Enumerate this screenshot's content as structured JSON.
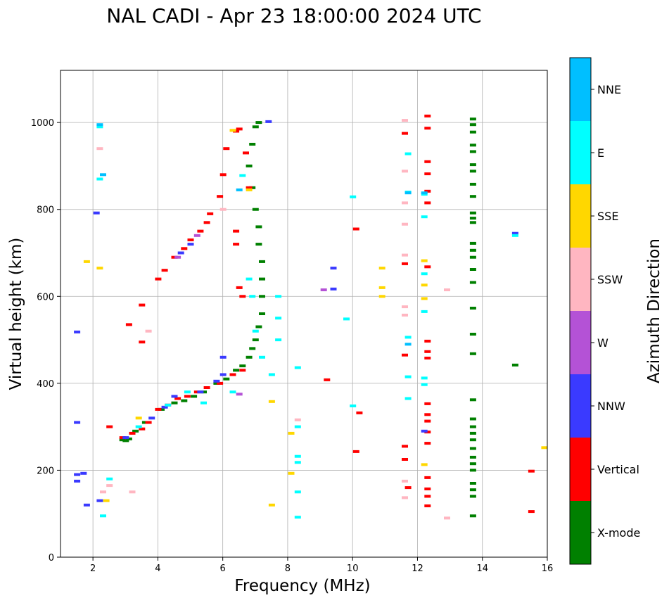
{
  "chart_data": {
    "type": "scatter",
    "title": "NAL CADI - Apr 23 18:00:00 2024 UTC",
    "xlabel": "Frequency (MHz)",
    "ylabel": "Virtual height (km)",
    "xlim": [
      1.0,
      16.0
    ],
    "ylim": [
      0,
      1120
    ],
    "xticks": [
      2,
      4,
      6,
      8,
      10,
      12,
      14,
      16
    ],
    "yticks": [
      0,
      200,
      400,
      600,
      800,
      1000
    ],
    "grid": true,
    "colorbar": {
      "label": "Azimuth Direction",
      "categories": [
        "X-mode",
        "Vertical",
        "NNW",
        "W",
        "SSW",
        "SSE",
        "E",
        "NNE"
      ],
      "colors": [
        "#008000",
        "#ff0000",
        "#3a3aff",
        "#b452d6",
        "#ffb6c1",
        "#ffd700",
        "#00ffff",
        "#00bfff"
      ]
    },
    "series": [
      {
        "name": "X-mode",
        "points": [
          [
            2.9,
            270
          ],
          [
            3.0,
            268
          ],
          [
            3.1,
            272
          ],
          [
            3.3,
            290
          ],
          [
            3.6,
            310
          ],
          [
            4.1,
            340
          ],
          [
            4.5,
            355
          ],
          [
            4.8,
            360
          ],
          [
            5.1,
            370
          ],
          [
            5.4,
            380
          ],
          [
            5.8,
            400
          ],
          [
            6.1,
            410
          ],
          [
            6.4,
            430
          ],
          [
            6.6,
            440
          ],
          [
            6.8,
            460
          ],
          [
            6.9,
            480
          ],
          [
            7.0,
            500
          ],
          [
            7.1,
            530
          ],
          [
            7.2,
            560
          ],
          [
            7.2,
            600
          ],
          [
            7.2,
            640
          ],
          [
            7.2,
            680
          ],
          [
            7.1,
            720
          ],
          [
            7.1,
            760
          ],
          [
            7.0,
            800
          ],
          [
            6.9,
            850
          ],
          [
            6.8,
            900
          ],
          [
            6.9,
            950
          ],
          [
            7.0,
            990
          ],
          [
            7.1,
            1000
          ],
          [
            13.7,
            95
          ],
          [
            13.7,
            140
          ],
          [
            13.7,
            155
          ],
          [
            13.7,
            170
          ],
          [
            13.7,
            200
          ],
          [
            13.7,
            215
          ],
          [
            13.7,
            230
          ],
          [
            13.7,
            250
          ],
          [
            13.7,
            270
          ],
          [
            13.7,
            285
          ],
          [
            13.7,
            300
          ],
          [
            13.7,
            318
          ],
          [
            13.7,
            362
          ],
          [
            13.7,
            468
          ],
          [
            13.7,
            513
          ],
          [
            13.7,
            573
          ],
          [
            13.7,
            632
          ],
          [
            13.7,
            662
          ],
          [
            13.7,
            690
          ],
          [
            13.7,
            706
          ],
          [
            13.7,
            722
          ],
          [
            13.7,
            770
          ],
          [
            13.7,
            780
          ],
          [
            13.7,
            792
          ],
          [
            13.7,
            830
          ],
          [
            13.7,
            858
          ],
          [
            13.7,
            888
          ],
          [
            13.7,
            903
          ],
          [
            13.7,
            933
          ],
          [
            13.7,
            948
          ],
          [
            13.7,
            978
          ],
          [
            13.7,
            995
          ],
          [
            13.7,
            1008
          ],
          [
            15.0,
            442
          ]
        ]
      },
      {
        "name": "Vertical",
        "points": [
          [
            2.5,
            300
          ],
          [
            2.9,
            275
          ],
          [
            3.2,
            285
          ],
          [
            3.5,
            295
          ],
          [
            3.7,
            310
          ],
          [
            4.0,
            340
          ],
          [
            4.3,
            350
          ],
          [
            4.6,
            365
          ],
          [
            4.9,
            370
          ],
          [
            5.2,
            380
          ],
          [
            5.5,
            390
          ],
          [
            5.9,
            400
          ],
          [
            6.3,
            420
          ],
          [
            6.6,
            430
          ],
          [
            4.0,
            640
          ],
          [
            4.2,
            660
          ],
          [
            4.5,
            690
          ],
          [
            4.8,
            710
          ],
          [
            5.0,
            730
          ],
          [
            5.3,
            750
          ],
          [
            5.5,
            770
          ],
          [
            5.6,
            790
          ],
          [
            5.9,
            830
          ],
          [
            6.0,
            880
          ],
          [
            6.1,
            940
          ],
          [
            6.3,
            420
          ],
          [
            6.4,
            720
          ],
          [
            6.4,
            750
          ],
          [
            6.5,
            620
          ],
          [
            6.6,
            600
          ],
          [
            6.4,
            980
          ],
          [
            6.5,
            985
          ],
          [
            6.7,
            930
          ],
          [
            6.8,
            850
          ],
          [
            3.5,
            580
          ],
          [
            3.5,
            495
          ],
          [
            3.1,
            535
          ],
          [
            9.2,
            408
          ],
          [
            10.1,
            243
          ],
          [
            10.1,
            755
          ],
          [
            10.2,
            332
          ],
          [
            11.6,
            975
          ],
          [
            11.6,
            675
          ],
          [
            11.6,
            465
          ],
          [
            11.6,
            255
          ],
          [
            11.6,
            225
          ],
          [
            11.7,
            160
          ],
          [
            12.3,
            1015
          ],
          [
            12.3,
            987
          ],
          [
            12.3,
            910
          ],
          [
            12.3,
            882
          ],
          [
            12.3,
            842
          ],
          [
            12.3,
            815
          ],
          [
            12.3,
            668
          ],
          [
            12.3,
            497
          ],
          [
            12.3,
            473
          ],
          [
            12.3,
            458
          ],
          [
            12.3,
            353
          ],
          [
            12.3,
            328
          ],
          [
            12.3,
            313
          ],
          [
            12.3,
            288
          ],
          [
            12.3,
            262
          ],
          [
            12.3,
            183
          ],
          [
            12.3,
            157
          ],
          [
            12.3,
            140
          ],
          [
            12.3,
            118
          ],
          [
            15.5,
            198
          ],
          [
            15.5,
            105
          ]
        ]
      },
      {
        "name": "NNW",
        "points": [
          [
            1.5,
            518
          ],
          [
            1.5,
            310
          ],
          [
            1.5,
            190
          ],
          [
            1.5,
            175
          ],
          [
            1.7,
            193
          ],
          [
            1.8,
            120
          ],
          [
            2.1,
            792
          ],
          [
            2.2,
            130
          ],
          [
            3.0,
            275
          ],
          [
            3.8,
            320
          ],
          [
            4.2,
            345
          ],
          [
            4.5,
            370
          ],
          [
            4.7,
            700
          ],
          [
            5.0,
            720
          ],
          [
            5.3,
            380
          ],
          [
            5.8,
            405
          ],
          [
            6.0,
            420
          ],
          [
            6.0,
            460
          ],
          [
            7.4,
            1002
          ],
          [
            9.4,
            665
          ],
          [
            9.4,
            617
          ],
          [
            12.2,
            290
          ],
          [
            15.0,
            745
          ]
        ]
      },
      {
        "name": "W",
        "points": [
          [
            4.6,
            690
          ],
          [
            5.2,
            740
          ],
          [
            6.5,
            375
          ],
          [
            9.1,
            615
          ]
        ]
      },
      {
        "name": "SSW",
        "points": [
          [
            2.3,
            150
          ],
          [
            2.5,
            165
          ],
          [
            2.2,
            940
          ],
          [
            3.2,
            150
          ],
          [
            3.7,
            520
          ],
          [
            6.0,
            800
          ],
          [
            8.3,
            316
          ],
          [
            11.6,
            1005
          ],
          [
            11.6,
            888
          ],
          [
            11.6,
            815
          ],
          [
            11.6,
            766
          ],
          [
            11.6,
            695
          ],
          [
            11.6,
            576
          ],
          [
            11.6,
            557
          ],
          [
            11.6,
            175
          ],
          [
            11.6,
            137
          ],
          [
            12.9,
            615
          ],
          [
            12.9,
            90
          ]
        ]
      },
      {
        "name": "SSE",
        "points": [
          [
            1.8,
            680
          ],
          [
            2.2,
            665
          ],
          [
            2.4,
            130
          ],
          [
            3.4,
            320
          ],
          [
            6.3,
            982
          ],
          [
            6.8,
            845
          ],
          [
            7.5,
            358
          ],
          [
            7.5,
            120
          ],
          [
            8.1,
            285
          ],
          [
            8.1,
            193
          ],
          [
            10.9,
            665
          ],
          [
            10.9,
            620
          ],
          [
            10.9,
            600
          ],
          [
            12.2,
            682
          ],
          [
            12.2,
            626
          ],
          [
            12.2,
            595
          ],
          [
            12.2,
            213
          ],
          [
            15.9,
            252
          ]
        ]
      },
      {
        "name": "E",
        "points": [
          [
            2.2,
            990
          ],
          [
            2.2,
            870
          ],
          [
            2.3,
            95
          ],
          [
            2.5,
            180
          ],
          [
            3.4,
            300
          ],
          [
            4.3,
            350
          ],
          [
            4.9,
            380
          ],
          [
            5.4,
            355
          ],
          [
            6.3,
            380
          ],
          [
            6.6,
            878
          ],
          [
            6.8,
            640
          ],
          [
            6.9,
            600
          ],
          [
            7.0,
            520
          ],
          [
            7.2,
            460
          ],
          [
            7.5,
            420
          ],
          [
            7.7,
            600
          ],
          [
            7.7,
            550
          ],
          [
            7.7,
            500
          ],
          [
            8.3,
            436
          ],
          [
            8.3,
            300
          ],
          [
            8.3,
            232
          ],
          [
            8.3,
            218
          ],
          [
            8.3,
            150
          ],
          [
            8.3,
            92
          ],
          [
            9.8,
            548
          ],
          [
            10.0,
            348
          ],
          [
            10.0,
            829
          ],
          [
            11.7,
            928
          ],
          [
            11.7,
            840
          ],
          [
            11.7,
            506
          ],
          [
            11.7,
            415
          ],
          [
            11.7,
            365
          ],
          [
            12.2,
            835
          ],
          [
            12.2,
            783
          ],
          [
            12.2,
            652
          ],
          [
            12.2,
            565
          ],
          [
            12.2,
            412
          ],
          [
            12.2,
            397
          ],
          [
            15.0,
            740
          ]
        ]
      },
      {
        "name": "NNE",
        "points": [
          [
            2.2,
            995
          ],
          [
            2.3,
            880
          ],
          [
            6.5,
            845
          ],
          [
            11.7,
            838
          ],
          [
            11.7,
            490
          ],
          [
            12.2,
            838
          ]
        ]
      }
    ]
  }
}
